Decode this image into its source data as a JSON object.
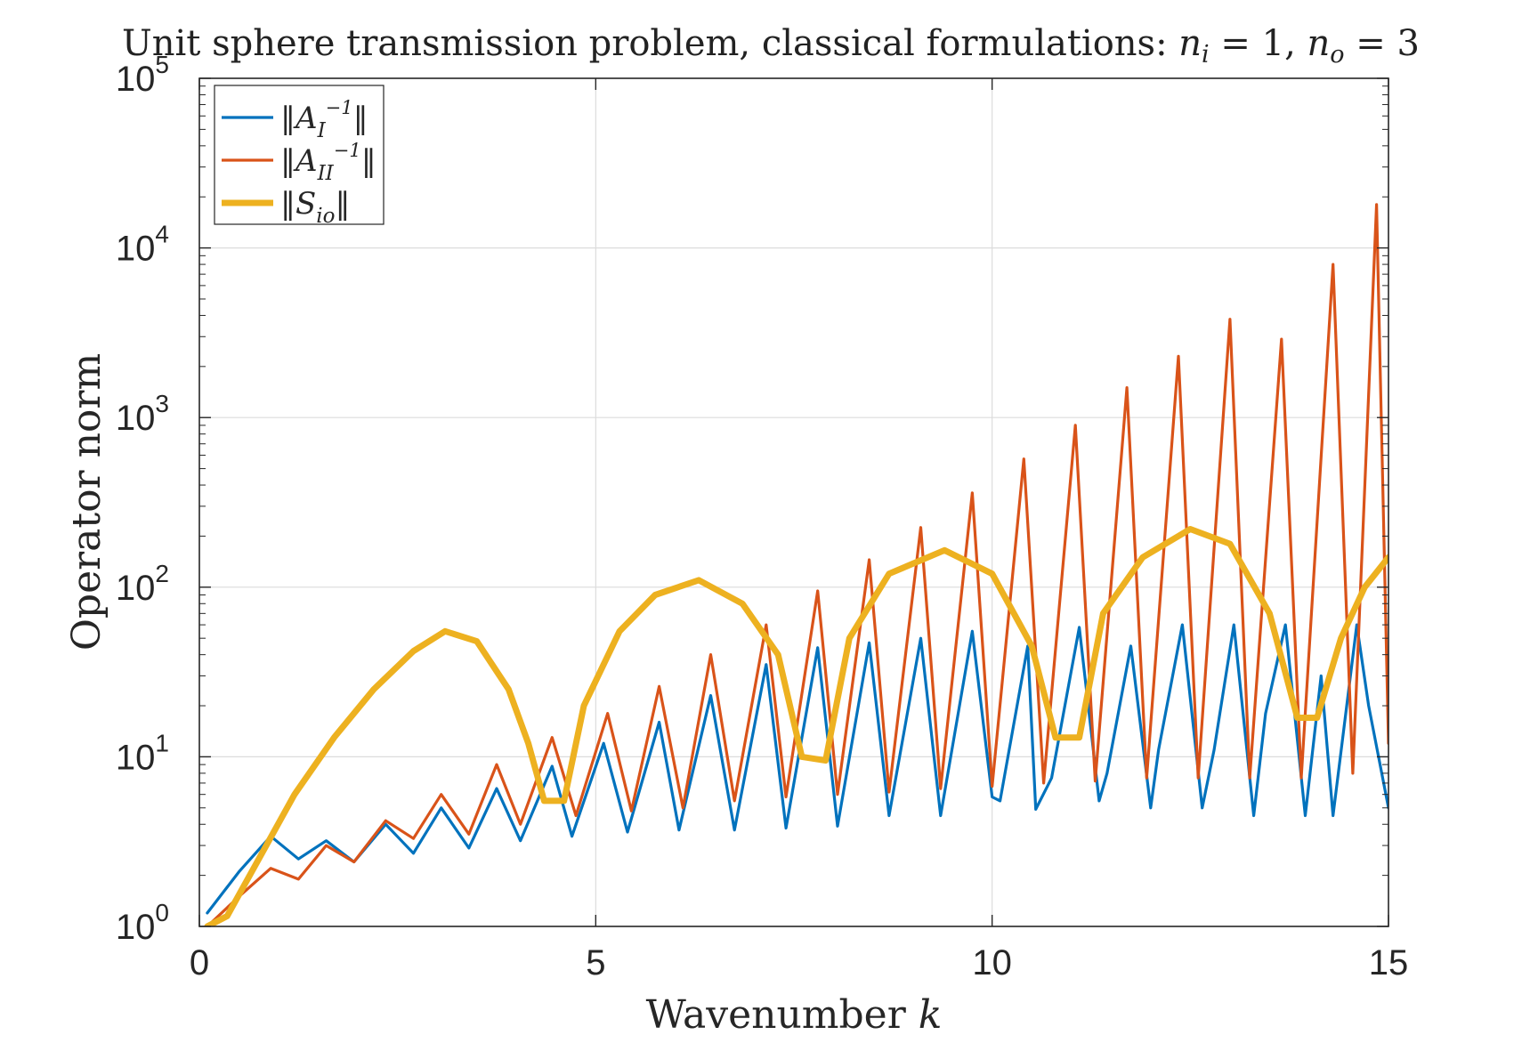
{
  "chart_data": {
    "type": "line",
    "title": "Unit sphere transmission problem, classical formulations: n_i = 1, n_o = 3",
    "title_parts": {
      "prefix": "Unit sphere transmission problem, classical formulations: ",
      "n1": "n",
      "n1_sub": "i",
      "eq1": " = 1, ",
      "n2": "n",
      "n2_sub": "o",
      "eq2": " = 3"
    },
    "xlabel": "Wavenumber",
    "xlabel_var": "k",
    "ylabel": "Operator norm",
    "xlim": [
      0,
      15
    ],
    "ylim": [
      1,
      100000
    ],
    "yscale": "log",
    "grid": true,
    "legend_position": "top-left",
    "x_ticks": [
      "0",
      "5",
      "10",
      "15"
    ],
    "y_ticks": [
      {
        "base": "10",
        "exp": "0"
      },
      {
        "base": "10",
        "exp": "1"
      },
      {
        "base": "10",
        "exp": "2"
      },
      {
        "base": "10",
        "exp": "3"
      },
      {
        "base": "10",
        "exp": "4"
      },
      {
        "base": "10",
        "exp": "5"
      }
    ],
    "series": [
      {
        "name": "‖A_I^{-1}‖",
        "legend": {
          "pre": "‖A",
          "sub": "I",
          "sup": "−1",
          "post": "‖"
        },
        "color": "#0072bd",
        "width": 3.2,
        "x": [
          0.1,
          0.5,
          0.9,
          1.25,
          1.6,
          1.95,
          2.35,
          2.7,
          3.05,
          3.4,
          3.75,
          4.05,
          4.45,
          4.7,
          5.1,
          5.4,
          5.8,
          6.05,
          6.45,
          6.75,
          7.15,
          7.4,
          7.8,
          8.05,
          8.45,
          8.7,
          9.1,
          9.35,
          9.75,
          10.0,
          10.1,
          10.45,
          10.55,
          10.75,
          11.1,
          11.35,
          11.45,
          11.75,
          12.0,
          12.1,
          12.4,
          12.65,
          12.8,
          13.05,
          13.3,
          13.45,
          13.7,
          13.95,
          14.15,
          14.3,
          14.6,
          14.75,
          15.0
        ],
        "y": [
          1.2,
          2.1,
          3.4,
          2.5,
          3.2,
          2.4,
          4.0,
          2.7,
          5.0,
          2.9,
          6.5,
          3.2,
          8.8,
          3.4,
          12.0,
          3.6,
          16.0,
          3.7,
          23.0,
          3.7,
          35.0,
          3.8,
          44.0,
          3.9,
          47.0,
          4.5,
          50.0,
          4.5,
          55.0,
          5.8,
          5.5,
          45.0,
          4.9,
          7.5,
          58.0,
          5.5,
          8.0,
          45.0,
          5.0,
          11.0,
          60.0,
          5.0,
          11.0,
          60.0,
          4.5,
          18.0,
          60.0,
          4.5,
          30.0,
          4.5,
          60.0,
          20.0,
          5.0
        ]
      },
      {
        "name": "‖A_II^{-1}‖",
        "legend": {
          "pre": "‖A",
          "sub": "II",
          "sup": "−1",
          "post": "‖"
        },
        "color": "#d95319",
        "width": 3.2,
        "x": [
          0.1,
          0.5,
          0.9,
          1.25,
          1.6,
          1.95,
          2.35,
          2.7,
          3.05,
          3.4,
          3.75,
          4.05,
          4.45,
          4.75,
          5.15,
          5.45,
          5.8,
          6.1,
          6.45,
          6.75,
          7.15,
          7.4,
          7.8,
          8.05,
          8.45,
          8.7,
          9.1,
          9.35,
          9.75,
          10.0,
          10.4,
          10.65,
          11.05,
          11.3,
          11.7,
          11.95,
          12.35,
          12.6,
          13.0,
          13.25,
          13.65,
          13.9,
          14.3,
          14.55,
          14.85,
          15.0
        ],
        "y": [
          1.0,
          1.5,
          2.2,
          1.9,
          3.0,
          2.4,
          4.2,
          3.3,
          6.0,
          3.5,
          9.0,
          4.0,
          13.0,
          4.5,
          18.0,
          4.8,
          26.0,
          5.0,
          40.0,
          5.5,
          60.0,
          5.8,
          95.0,
          6.0,
          145.0,
          6.2,
          225.0,
          6.5,
          360.0,
          6.7,
          570.0,
          7.0,
          900.0,
          7.2,
          1500.0,
          7.5,
          2300.0,
          7.5,
          3800.0,
          7.5,
          2900.0,
          7.5,
          8000.0,
          8.0,
          18000.0,
          12.0
        ]
      },
      {
        "name": "‖S_io‖",
        "legend": {
          "pre": "‖S",
          "sub": "io",
          "sup": "",
          "post": "‖"
        },
        "color": "#edb120",
        "width": 7,
        "x": [
          0.1,
          0.35,
          0.75,
          1.2,
          1.7,
          2.2,
          2.7,
          3.1,
          3.5,
          3.9,
          4.15,
          4.35,
          4.6,
          4.85,
          5.3,
          5.75,
          6.3,
          6.85,
          7.3,
          7.6,
          7.9,
          8.2,
          8.7,
          9.4,
          10.0,
          10.5,
          10.8,
          11.1,
          11.4,
          11.9,
          12.5,
          13.0,
          13.5,
          13.85,
          14.1,
          14.4,
          14.7,
          15.0
        ],
        "y": [
          1.0,
          1.15,
          2.5,
          6.0,
          13.0,
          25.0,
          42.0,
          55.0,
          48.0,
          25.0,
          12.0,
          5.5,
          5.5,
          20.0,
          55.0,
          90.0,
          110.0,
          80.0,
          40.0,
          10.0,
          9.5,
          50.0,
          120.0,
          165.0,
          120.0,
          45.0,
          13.0,
          13.0,
          70.0,
          150.0,
          220.0,
          180.0,
          70.0,
          17.0,
          17.0,
          50.0,
          100.0,
          150.0
        ]
      }
    ]
  }
}
